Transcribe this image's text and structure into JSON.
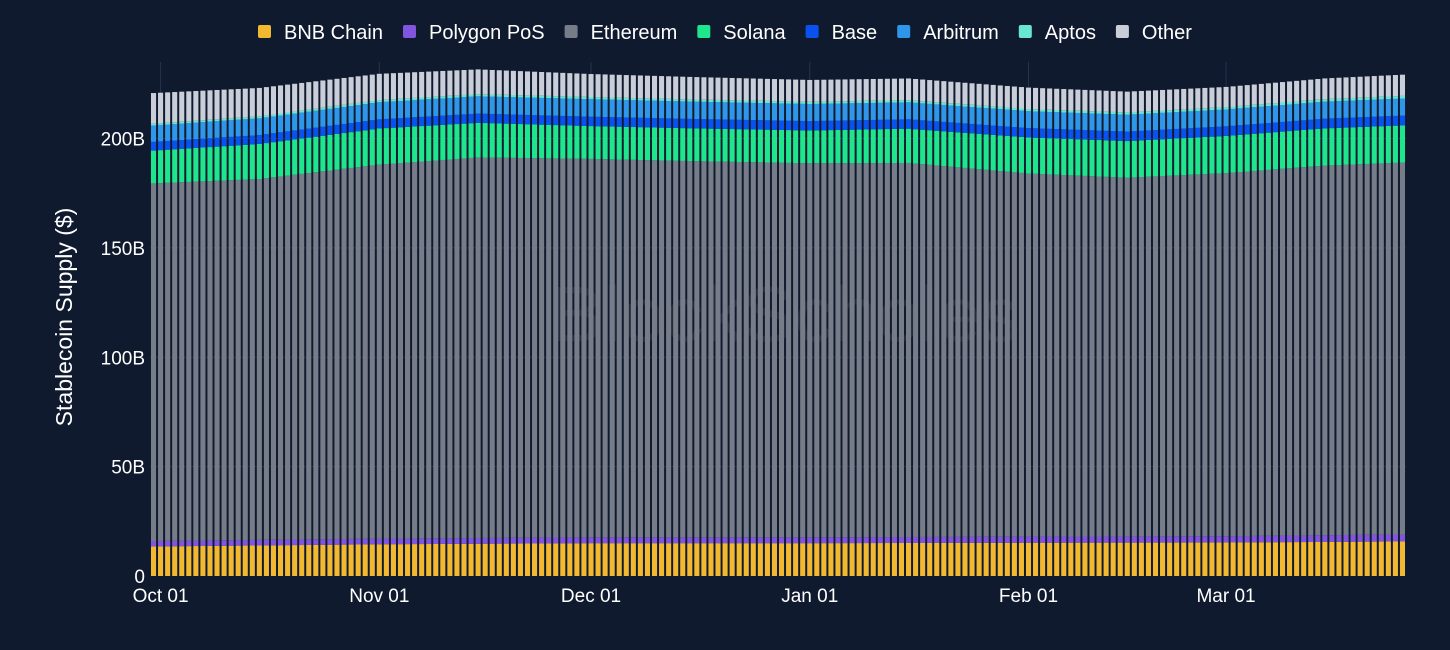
{
  "chart_data": {
    "type": "bar",
    "stacked": true,
    "ylabel": "Stablecoin Supply ($)",
    "watermark": "BlockScholes",
    "x_start": "2024-09-30",
    "x_end": "2025-03-26",
    "x_step_days": 1,
    "ylim": [
      0,
      235
    ],
    "y_unit": "B",
    "yticks": [
      {
        "value": 0,
        "label": "0"
      },
      {
        "value": 50,
        "label": "50B"
      },
      {
        "value": 100,
        "label": "100B"
      },
      {
        "value": 150,
        "label": "150B"
      },
      {
        "value": 200,
        "label": "200B"
      }
    ],
    "xticks": [
      {
        "date": "2024-10-01",
        "label": "Oct 01"
      },
      {
        "date": "2024-11-01",
        "label": "Nov 01"
      },
      {
        "date": "2024-12-01",
        "label": "Dec 01"
      },
      {
        "date": "2025-01-01",
        "label": "Jan 01"
      },
      {
        "date": "2025-02-01",
        "label": "Feb 01"
      },
      {
        "date": "2025-03-01",
        "label": "Mar 01"
      }
    ],
    "grid": true,
    "legend_position": "top",
    "series": [
      {
        "name": "BNB Chain",
        "color": "#f2b830",
        "anchors": [
          [
            "2024-09-30",
            13.5
          ],
          [
            "2024-11-01",
            14.5
          ],
          [
            "2024-12-01",
            15
          ],
          [
            "2025-01-01",
            15
          ],
          [
            "2025-02-01",
            15.2
          ],
          [
            "2025-03-01",
            15.3
          ],
          [
            "2025-03-26",
            15.8
          ]
        ]
      },
      {
        "name": "Polygon PoS",
        "color": "#8255e0",
        "anchors": [
          [
            "2024-09-30",
            2.5
          ],
          [
            "2024-11-01",
            2.6
          ],
          [
            "2024-12-01",
            2.7
          ],
          [
            "2025-01-01",
            2.7
          ],
          [
            "2025-02-01",
            2.8
          ],
          [
            "2025-03-01",
            2.9
          ],
          [
            "2025-03-26",
            3.2
          ]
        ]
      },
      {
        "name": "Ethereum",
        "color": "#777c89",
        "anchors": [
          [
            "2024-09-30",
            163.5
          ],
          [
            "2024-10-15",
            165
          ],
          [
            "2024-11-01",
            171
          ],
          [
            "2024-11-15",
            174
          ],
          [
            "2024-12-01",
            173
          ],
          [
            "2024-12-15",
            172
          ],
          [
            "2025-01-01",
            171
          ],
          [
            "2025-01-15",
            171
          ],
          [
            "2025-02-01",
            166
          ],
          [
            "2025-02-15",
            164
          ],
          [
            "2025-03-01",
            166
          ],
          [
            "2025-03-15",
            169
          ],
          [
            "2025-03-26",
            170
          ]
        ]
      },
      {
        "name": "Solana",
        "color": "#1fe58c",
        "anchors": [
          [
            "2024-09-30",
            15
          ],
          [
            "2024-10-15",
            16
          ],
          [
            "2024-11-01",
            16.5
          ],
          [
            "2024-12-01",
            15
          ],
          [
            "2025-01-01",
            15
          ],
          [
            "2025-02-01",
            16.5
          ],
          [
            "2025-03-01",
            17
          ],
          [
            "2025-03-26",
            17
          ]
        ]
      },
      {
        "name": "Base",
        "color": "#0a52f0",
        "anchors": [
          [
            "2024-09-30",
            4
          ],
          [
            "2024-11-01",
            4.2
          ],
          [
            "2024-12-01",
            4.3
          ],
          [
            "2025-01-01",
            4.3
          ],
          [
            "2025-02-01",
            4.3
          ],
          [
            "2025-03-01",
            4.4
          ],
          [
            "2025-03-26",
            4.5
          ]
        ]
      },
      {
        "name": "Arbitrum",
        "color": "#2f97ea",
        "anchors": [
          [
            "2024-09-30",
            7.5
          ],
          [
            "2024-11-01",
            7.8
          ],
          [
            "2024-12-01",
            8
          ],
          [
            "2025-01-01",
            7.8
          ],
          [
            "2025-02-01",
            7.7
          ],
          [
            "2025-03-01",
            7.7
          ],
          [
            "2025-03-26",
            7.8
          ]
        ]
      },
      {
        "name": "Aptos",
        "color": "#69e6d2",
        "anchors": [
          [
            "2024-09-30",
            0.8
          ],
          [
            "2024-11-01",
            1
          ],
          [
            "2024-12-01",
            1
          ],
          [
            "2025-01-01",
            1
          ],
          [
            "2025-02-01",
            1
          ],
          [
            "2025-03-01",
            1.1
          ],
          [
            "2025-03-26",
            1.2
          ]
        ]
      },
      {
        "name": "Other",
        "color": "#c9ced8",
        "anchors": [
          [
            "2024-09-30",
            14
          ],
          [
            "2024-10-15",
            13
          ],
          [
            "2024-11-01",
            12
          ],
          [
            "2024-12-01",
            10.5
          ],
          [
            "2025-01-01",
            10
          ],
          [
            "2025-02-01",
            9.8
          ],
          [
            "2025-03-01",
            9.2
          ],
          [
            "2025-03-26",
            9.7
          ]
        ]
      }
    ]
  }
}
